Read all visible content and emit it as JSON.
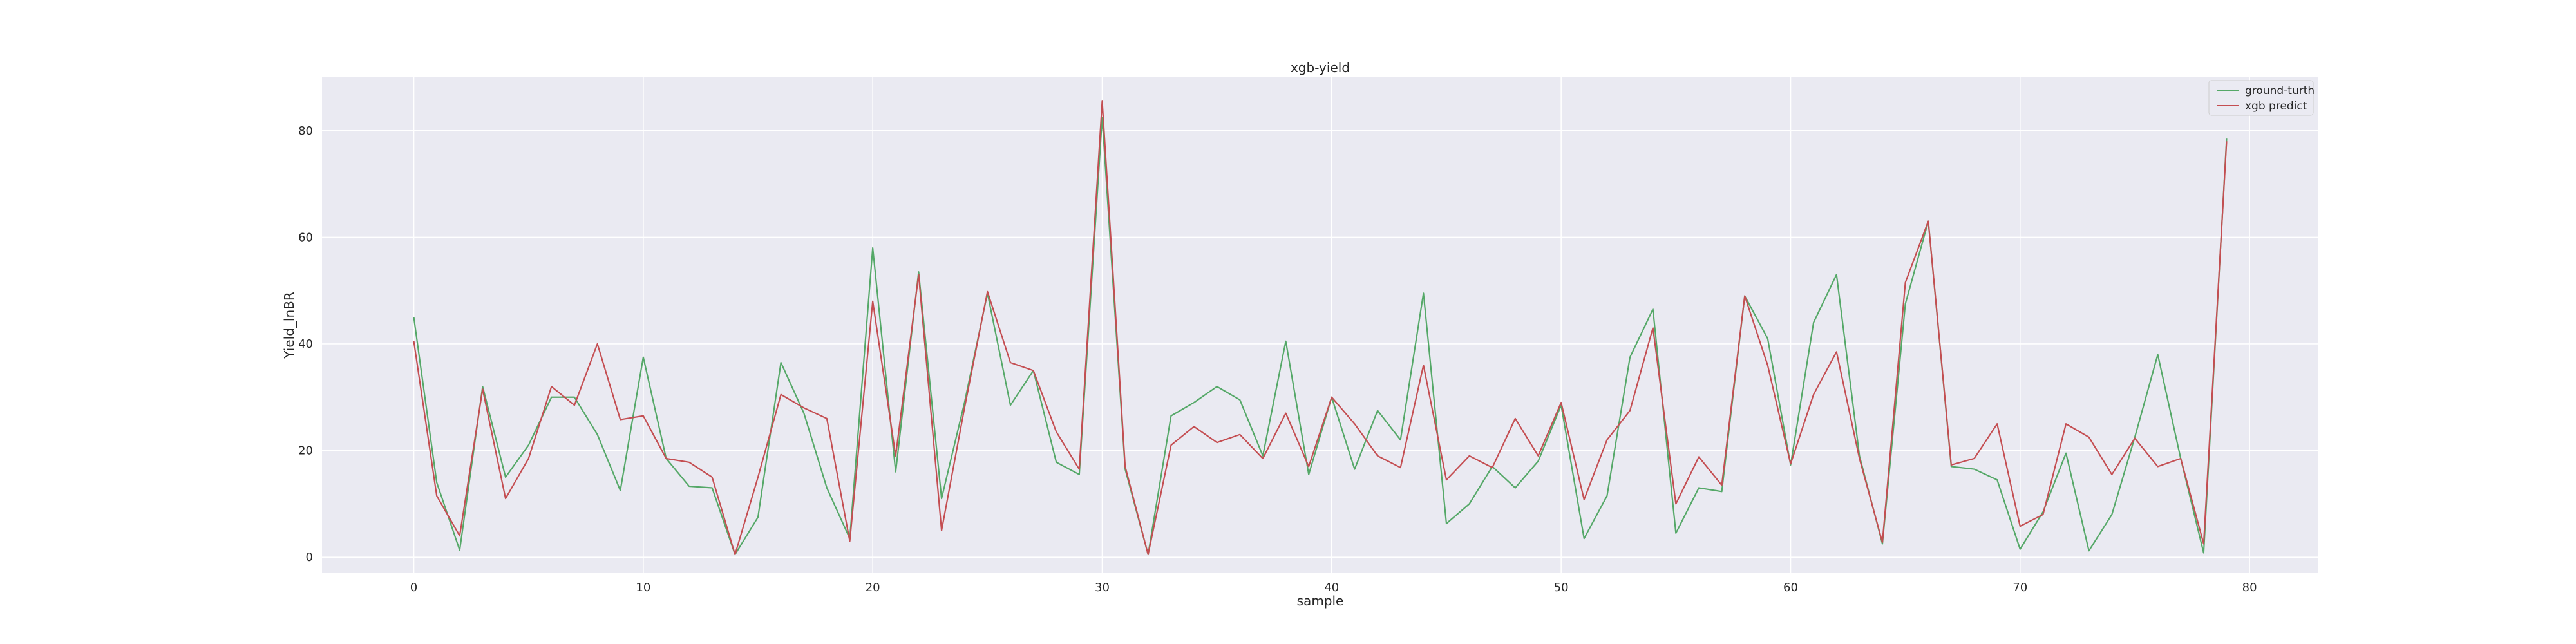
{
  "chart_data": {
    "type": "line",
    "title": "xgb-yield",
    "xlabel": "sample",
    "ylabel": "Yield_lnBR",
    "xlim": [
      -4,
      83
    ],
    "ylim": [
      -3,
      90
    ],
    "xticks": [
      0,
      10,
      20,
      30,
      40,
      50,
      60,
      70,
      80
    ],
    "yticks": [
      0,
      20,
      40,
      60,
      80
    ],
    "grid": true,
    "legend_position": "top-right",
    "x": [
      0,
      1,
      2,
      3,
      4,
      5,
      6,
      7,
      8,
      9,
      10,
      11,
      12,
      13,
      14,
      15,
      16,
      17,
      18,
      19,
      20,
      21,
      22,
      23,
      24,
      25,
      26,
      27,
      28,
      29,
      30,
      31,
      32,
      33,
      34,
      35,
      36,
      37,
      38,
      39,
      40,
      41,
      42,
      43,
      44,
      45,
      46,
      47,
      48,
      49,
      50,
      51,
      52,
      53,
      54,
      55,
      56,
      57,
      58,
      59,
      60,
      61,
      62,
      63,
      64,
      65,
      66,
      67,
      68,
      69,
      70,
      71,
      72,
      73,
      74,
      75,
      76,
      77,
      78,
      79
    ],
    "series": [
      {
        "name": "ground-turth",
        "color": "#55a868",
        "values": [
          45,
          14,
          1.3,
          32,
          15,
          21,
          30,
          30,
          23,
          12.5,
          37.5,
          18.5,
          13.3,
          13,
          0.5,
          7.5,
          36.5,
          27,
          13,
          3.5,
          58,
          16,
          53.5,
          11,
          29,
          49.5,
          28.5,
          35,
          17.8,
          15.5,
          82.5,
          16.5,
          0.5,
          26.5,
          29,
          32,
          29.5,
          19,
          40.5,
          15.5,
          30,
          16.5,
          27.5,
          22,
          49.5,
          6.3,
          10,
          17,
          13,
          18,
          28.5,
          3.5,
          11.5,
          37.5,
          46.5,
          4.5,
          13,
          12.3,
          49,
          41,
          17.3,
          44,
          53,
          19,
          2.5,
          47.5,
          63,
          17,
          16.5,
          14.5,
          1.5,
          8.5,
          19.5,
          1.2,
          8,
          22.5,
          38,
          18.5,
          0.8,
          78.5
        ]
      },
      {
        "name": "xgb predict",
        "color": "#c44e52",
        "values": [
          40.5,
          11.5,
          4,
          31.5,
          11,
          18.5,
          32,
          28.5,
          40,
          25.8,
          26.5,
          18.5,
          17.8,
          15,
          0.5,
          15,
          30.5,
          28,
          26,
          3,
          48,
          19,
          53,
          5,
          28,
          49.8,
          36.5,
          35,
          23.5,
          16.5,
          85.5,
          17,
          0.5,
          21,
          24.5,
          21.5,
          23,
          18.5,
          27,
          17,
          30,
          25,
          19,
          16.8,
          36,
          14.5,
          19,
          16.8,
          26,
          19,
          29,
          10.8,
          22,
          27.5,
          43,
          10,
          18.8,
          13.5,
          49,
          36,
          17.5,
          30.5,
          38.5,
          18.5,
          2.8,
          51.5,
          63,
          17.3,
          18.5,
          25,
          5.8,
          8,
          25,
          22.5,
          15.5,
          22.3,
          17,
          18.5,
          2.5,
          78
        ]
      }
    ]
  }
}
